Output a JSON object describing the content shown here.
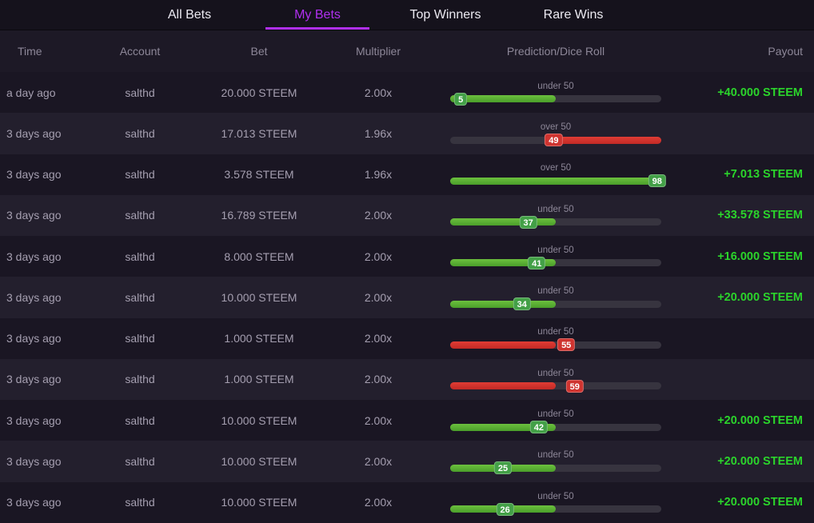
{
  "tabs": [
    {
      "label": "All Bets",
      "active": false
    },
    {
      "label": "My Bets",
      "active": true
    },
    {
      "label": "Top Winners",
      "active": false
    },
    {
      "label": "Rare Wins",
      "active": false
    }
  ],
  "table": {
    "columns": [
      "Time",
      "Account",
      "Bet",
      "Multiplier",
      "Prediction/Dice Roll",
      "Payout"
    ],
    "rows": [
      {
        "time": "a day ago",
        "account": "salthd",
        "bet": "20.000 STEEM",
        "multiplier": "2.00x",
        "prediction": "under 50",
        "roll": 5,
        "outcome": "win",
        "fill_from": 0,
        "fill_to": 50,
        "payout": "+40.000 STEEM"
      },
      {
        "time": "3 days ago",
        "account": "salthd",
        "bet": "17.013 STEEM",
        "multiplier": "1.96x",
        "prediction": "over 50",
        "roll": 49,
        "outcome": "lose",
        "fill_from": 49,
        "fill_to": 100,
        "payout": ""
      },
      {
        "time": "3 days ago",
        "account": "salthd",
        "bet": "3.578 STEEM",
        "multiplier": "1.96x",
        "prediction": "over 50",
        "roll": 98,
        "outcome": "win",
        "fill_from": 0,
        "fill_to": 98,
        "payout": "+7.013 STEEM"
      },
      {
        "time": "3 days ago",
        "account": "salthd",
        "bet": "16.789 STEEM",
        "multiplier": "2.00x",
        "prediction": "under 50",
        "roll": 37,
        "outcome": "win",
        "fill_from": 0,
        "fill_to": 50,
        "payout": "+33.578 STEEM"
      },
      {
        "time": "3 days ago",
        "account": "salthd",
        "bet": "8.000 STEEM",
        "multiplier": "2.00x",
        "prediction": "under 50",
        "roll": 41,
        "outcome": "win",
        "fill_from": 0,
        "fill_to": 50,
        "payout": "+16.000 STEEM"
      },
      {
        "time": "3 days ago",
        "account": "salthd",
        "bet": "10.000 STEEM",
        "multiplier": "2.00x",
        "prediction": "under 50",
        "roll": 34,
        "outcome": "win",
        "fill_from": 0,
        "fill_to": 50,
        "payout": "+20.000 STEEM"
      },
      {
        "time": "3 days ago",
        "account": "salthd",
        "bet": "1.000 STEEM",
        "multiplier": "2.00x",
        "prediction": "under 50",
        "roll": 55,
        "outcome": "lose",
        "fill_from": 0,
        "fill_to": 50,
        "payout": ""
      },
      {
        "time": "3 days ago",
        "account": "salthd",
        "bet": "1.000 STEEM",
        "multiplier": "2.00x",
        "prediction": "under 50",
        "roll": 59,
        "outcome": "lose",
        "fill_from": 0,
        "fill_to": 50,
        "payout": ""
      },
      {
        "time": "3 days ago",
        "account": "salthd",
        "bet": "10.000 STEEM",
        "multiplier": "2.00x",
        "prediction": "under 50",
        "roll": 42,
        "outcome": "win",
        "fill_from": 0,
        "fill_to": 50,
        "payout": "+20.000 STEEM"
      },
      {
        "time": "3 days ago",
        "account": "salthd",
        "bet": "10.000 STEEM",
        "multiplier": "2.00x",
        "prediction": "under 50",
        "roll": 25,
        "outcome": "win",
        "fill_from": 0,
        "fill_to": 50,
        "payout": "+20.000 STEEM"
      },
      {
        "time": "3 days ago",
        "account": "salthd",
        "bet": "10.000 STEEM",
        "multiplier": "2.00x",
        "prediction": "under 50",
        "roll": 26,
        "outcome": "win",
        "fill_from": 0,
        "fill_to": 50,
        "payout": "+20.000 STEEM"
      }
    ]
  },
  "colors": {
    "accent": "#b02ff0",
    "bg": "#1d1926",
    "tabbar-bg": "#15121c",
    "row-odd": "#1a1623",
    "row-even": "#231f2d",
    "track": "#37343f",
    "text": "#e8e6ee",
    "text-dim": "#a59fb0",
    "text-head": "#8d8798",
    "win-text": "#2bd42b",
    "fill-green-a": "#6cc03e",
    "fill-green-b": "#4a9e2a",
    "fill-red-a": "#e03c35",
    "fill-red-b": "#c22a25",
    "badge-green": "#43a047",
    "badge-red": "#cf3430"
  }
}
